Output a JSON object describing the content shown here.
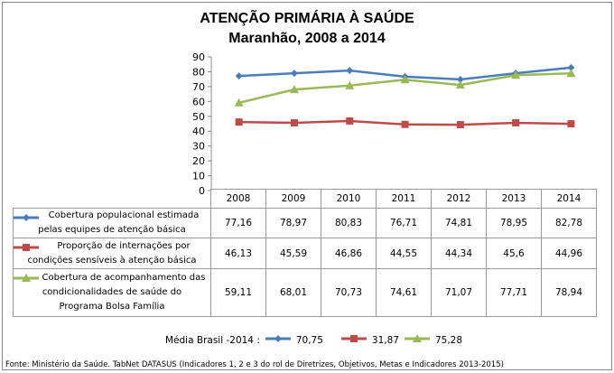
{
  "title": "ATENÇÃO PRIMÁRIA À SAÚDE",
  "subtitle": "Maranhão, 2008 a 2014",
  "chart_data": {
    "type": "line",
    "title": "ATENÇÃO PRIMÁRIA À SAÚDE - Maranhão, 2008 a 2014",
    "categories": [
      "2008",
      "2009",
      "2010",
      "2011",
      "2012",
      "2013",
      "2014"
    ],
    "ylim": [
      0,
      90
    ],
    "yticks": [
      "0",
      "10",
      "20",
      "30",
      "40",
      "50",
      "60",
      "70",
      "80",
      "90"
    ],
    "series": [
      {
        "name": "Cobertura populacional estimada pelas equipes de atenção básica",
        "color": "#4a7ebb",
        "marker": "diamond",
        "values": [
          77.16,
          78.97,
          80.83,
          76.71,
          74.81,
          78.95,
          82.78
        ],
        "labels": [
          "77,16",
          "78,97",
          "80,83",
          "76,71",
          "74,81",
          "78,95",
          "82,78"
        ]
      },
      {
        "name": "Proporção de internações por condições sensíveis à atenção básica",
        "color": "#be4b48",
        "marker": "square",
        "values": [
          46.13,
          45.59,
          46.86,
          44.55,
          44.34,
          45.6,
          44.96
        ],
        "labels": [
          "46,13",
          "45,59",
          "46,86",
          "44,55",
          "44,34",
          "45,6",
          "44,96"
        ]
      },
      {
        "name": "Cobertura de acompanhamento das condicionalidades de saúde do Programa Bolsa Família",
        "color": "#98b954",
        "marker": "triangle",
        "values": [
          59.11,
          68.01,
          70.73,
          74.61,
          71.07,
          77.71,
          78.94
        ],
        "labels": [
          "59,11",
          "68,01",
          "70,73",
          "74,61",
          "71,07",
          "77,71",
          "78,94"
        ]
      }
    ]
  },
  "row_labels": [
    [
      "Cobertura  populacional estimada",
      "pelas equipes de atenção básica"
    ],
    [
      "Proporção de internações por",
      "condições sensíveis  à atenção básica"
    ],
    [
      "Cobertura de acompanhamento das",
      "condicionalidades de saúde do",
      "Programa Bolsa Família"
    ]
  ],
  "legend": {
    "label": "Média Brasil -2014 :",
    "values": [
      "70,75",
      "31,87",
      "75,28"
    ]
  },
  "source": "Fonte: Ministério da Saúde. TabNet DATASUS (Indicadores 1, 2 e 3 do rol de Diretrizes, Objetivos, Metas e Indicadores 2013-2015)"
}
